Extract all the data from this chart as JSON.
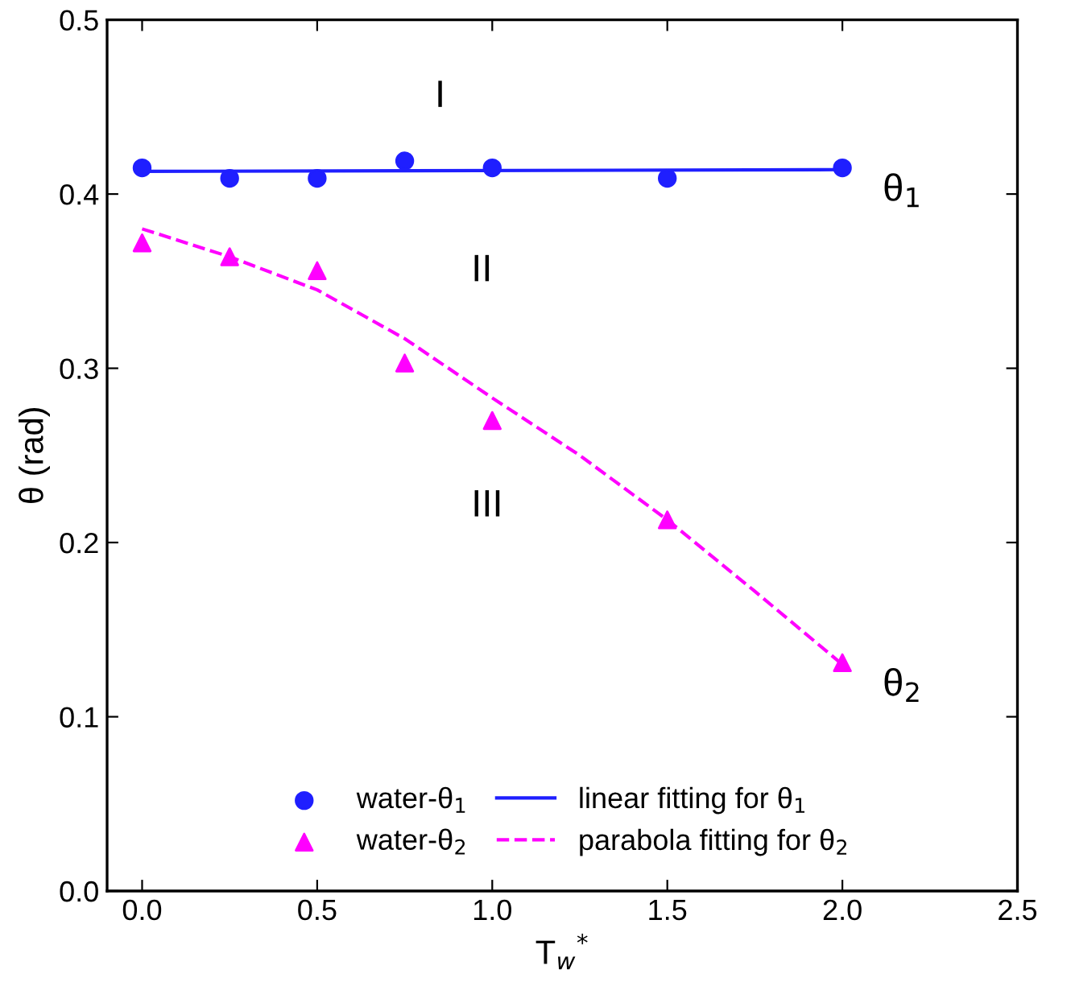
{
  "chart_data": {
    "type": "scatter",
    "xlabel": "T$_{w}$$^{*}$",
    "ylabel": "θ (rad)",
    "xlim": [
      -0.1,
      2.5
    ],
    "xticks": [
      {
        "value": 0,
        "label": "0.0"
      },
      0.5,
      {
        "value": 1,
        "label": "1.0"
      },
      1.5,
      {
        "value": 2,
        "label": "2.0"
      },
      2.5
    ],
    "ylim": [
      0.0,
      0.5
    ],
    "yticks": [
      {
        "value": 0,
        "label": "0.0"
      },
      0.1,
      0.2,
      0.3,
      0.4,
      0.5
    ],
    "grid": false,
    "legend": "bottom",
    "series": [
      {
        "name": "water-θ$_{1}$",
        "marker": "circle",
        "color": "#1f1fff",
        "x": [
          0,
          0.25,
          0.5,
          0.75,
          1.0,
          1.5,
          2.0
        ],
        "values": [
          0.415,
          0.409,
          0.409,
          0.419,
          0.415,
          0.409,
          0.415
        ]
      },
      {
        "name": "water-θ$_{2}$",
        "marker": "triangle",
        "color": "#ff00ff",
        "x": [
          0,
          0.25,
          0.5,
          0.75,
          1.0,
          1.5,
          2.0
        ],
        "values": [
          0.372,
          0.364,
          0.356,
          0.303,
          0.27,
          0.213,
          0.131
        ]
      },
      {
        "name": "linear fitting for θ$_{1}$",
        "type": "line",
        "line_style": "solid",
        "color": "#1f1fff",
        "x": [
          0,
          2.0
        ],
        "values": [
          0.413,
          0.414
        ]
      },
      {
        "name": "parabola fitting for θ$_{2}$",
        "type": "line",
        "line_style": "dashed",
        "color": "#ff00ff",
        "x": [
          0,
          0.25,
          0.5,
          0.75,
          1.0,
          1.25,
          1.5,
          1.75,
          2.0
        ],
        "values": [
          0.38,
          0.364,
          0.345,
          0.317,
          0.283,
          0.25,
          0.213,
          0.172,
          0.13
        ]
      }
    ],
    "annotations": [
      "I",
      "II",
      "III",
      {
        "text": "θ$_{1}$",
        "x": 2.0,
        "y": 0.414
      },
      {
        "text": "θ$_{2}$",
        "x": 2.0,
        "y": 0.13
      }
    ]
  }
}
